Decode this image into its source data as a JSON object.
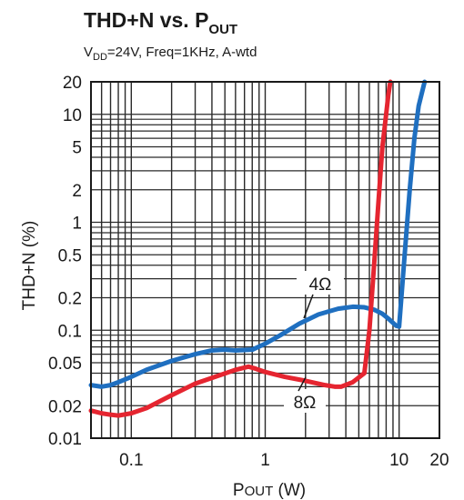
{
  "chart_data": {
    "type": "line",
    "title": {
      "main": "THD+N vs. P",
      "sub": "OUT"
    },
    "subtitle": {
      "part1": "V",
      "sub": "DD",
      "part2": "=24V, Freq=1KHz, A-wtd"
    },
    "xlabel": {
      "main": "P",
      "small": "OUT",
      "unit": " (W)"
    },
    "ylabel": "THD+N (%)",
    "x_scale": "log",
    "y_scale": "log",
    "xlim": [
      0.05,
      20
    ],
    "ylim": [
      0.01,
      20
    ],
    "x_ticks": [
      {
        "value": 0.1,
        "label": "0.1"
      },
      {
        "value": 1,
        "label": "1"
      },
      {
        "value": 10,
        "label": "10"
      },
      {
        "value": 20,
        "label": "20"
      }
    ],
    "y_ticks": [
      {
        "value": 20,
        "label": "20"
      },
      {
        "value": 10,
        "label": "10"
      },
      {
        "value": 5,
        "label": "5"
      },
      {
        "value": 2,
        "label": "2"
      },
      {
        "value": 1,
        "label": "1"
      },
      {
        "value": 0.5,
        "label": "0.5"
      },
      {
        "value": 0.2,
        "label": "0.2"
      },
      {
        "value": 0.1,
        "label": "0.1"
      },
      {
        "value": 0.05,
        "label": "0.05"
      },
      {
        "value": 0.02,
        "label": "0.02"
      },
      {
        "value": 0.01,
        "label": "0.01"
      }
    ],
    "grid": true,
    "series": [
      {
        "name": "4Ω",
        "color": "#1f6fc0",
        "points": [
          [
            0.05,
            0.031
          ],
          [
            0.06,
            0.03
          ],
          [
            0.07,
            0.031
          ],
          [
            0.08,
            0.033
          ],
          [
            0.1,
            0.037
          ],
          [
            0.13,
            0.043
          ],
          [
            0.2,
            0.052
          ],
          [
            0.3,
            0.06
          ],
          [
            0.4,
            0.065
          ],
          [
            0.5,
            0.066
          ],
          [
            0.6,
            0.065
          ],
          [
            0.8,
            0.066
          ],
          [
            1.0,
            0.075
          ],
          [
            1.3,
            0.09
          ],
          [
            1.8,
            0.115
          ],
          [
            2.5,
            0.14
          ],
          [
            3.5,
            0.158
          ],
          [
            4.5,
            0.165
          ],
          [
            5.5,
            0.163
          ],
          [
            6.5,
            0.155
          ],
          [
            7.5,
            0.142
          ],
          [
            8.5,
            0.125
          ],
          [
            9.5,
            0.11
          ],
          [
            10.0,
            0.108
          ],
          [
            11.0,
            0.5
          ],
          [
            12.0,
            2.0
          ],
          [
            13.0,
            6.0
          ],
          [
            14.0,
            12.0
          ],
          [
            15.5,
            20.0
          ]
        ]
      },
      {
        "name": "8Ω",
        "color": "#e52530",
        "points": [
          [
            0.05,
            0.018
          ],
          [
            0.06,
            0.017
          ],
          [
            0.07,
            0.0165
          ],
          [
            0.08,
            0.0162
          ],
          [
            0.1,
            0.017
          ],
          [
            0.13,
            0.019
          ],
          [
            0.2,
            0.025
          ],
          [
            0.3,
            0.032
          ],
          [
            0.45,
            0.038
          ],
          [
            0.6,
            0.043
          ],
          [
            0.75,
            0.046
          ],
          [
            0.85,
            0.044
          ],
          [
            1.0,
            0.041
          ],
          [
            1.4,
            0.037
          ],
          [
            2.0,
            0.034
          ],
          [
            2.8,
            0.031
          ],
          [
            3.3,
            0.03
          ],
          [
            3.7,
            0.03
          ],
          [
            4.5,
            0.033
          ],
          [
            5.5,
            0.04
          ],
          [
            6.0,
            0.1
          ],
          [
            6.5,
            0.4
          ],
          [
            7.0,
            1.5
          ],
          [
            7.5,
            5.0
          ],
          [
            8.0,
            10.0
          ],
          [
            8.3,
            15.0
          ],
          [
            8.6,
            20.0
          ]
        ]
      }
    ],
    "annotations": [
      {
        "text": "4Ω",
        "series": "4Ω"
      },
      {
        "text": "8Ω",
        "series": "8Ω"
      }
    ]
  }
}
